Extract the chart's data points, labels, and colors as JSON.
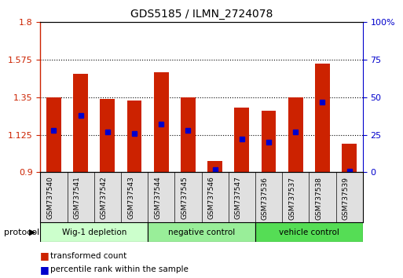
{
  "title": "GDS5185 / ILMN_2724078",
  "samples": [
    "GSM737540",
    "GSM737541",
    "GSM737542",
    "GSM737543",
    "GSM737544",
    "GSM737545",
    "GSM737546",
    "GSM737547",
    "GSM737536",
    "GSM737537",
    "GSM737538",
    "GSM737539"
  ],
  "bar_values": [
    1.35,
    1.49,
    1.34,
    1.33,
    1.5,
    1.35,
    0.97,
    1.29,
    1.27,
    1.35,
    1.55,
    1.07
  ],
  "percentile_ranks": [
    28,
    38,
    27,
    26,
    32,
    28,
    2,
    22,
    20,
    27,
    47,
    1
  ],
  "ymin": 0.9,
  "ymax": 1.8,
  "yticks_left": [
    0.9,
    1.125,
    1.35,
    1.575,
    1.8
  ],
  "yticks_right": [
    0,
    25,
    50,
    75,
    100
  ],
  "bar_color": "#cc2200",
  "dot_color": "#0000cc",
  "groups": [
    {
      "label": "Wig-1 depletion",
      "start": 0,
      "end": 4,
      "color": "#ccffcc"
    },
    {
      "label": "negative control",
      "start": 4,
      "end": 8,
      "color": "#99ee99"
    },
    {
      "label": "vehicle control",
      "start": 8,
      "end": 12,
      "color": "#55dd55"
    }
  ],
  "group_label": "protocol",
  "legend_bar_label": "transformed count",
  "legend_dot_label": "percentile rank within the sample",
  "bar_width": 0.55,
  "tick_label_color_left": "#cc2200",
  "tick_label_color_right": "#0000cc"
}
